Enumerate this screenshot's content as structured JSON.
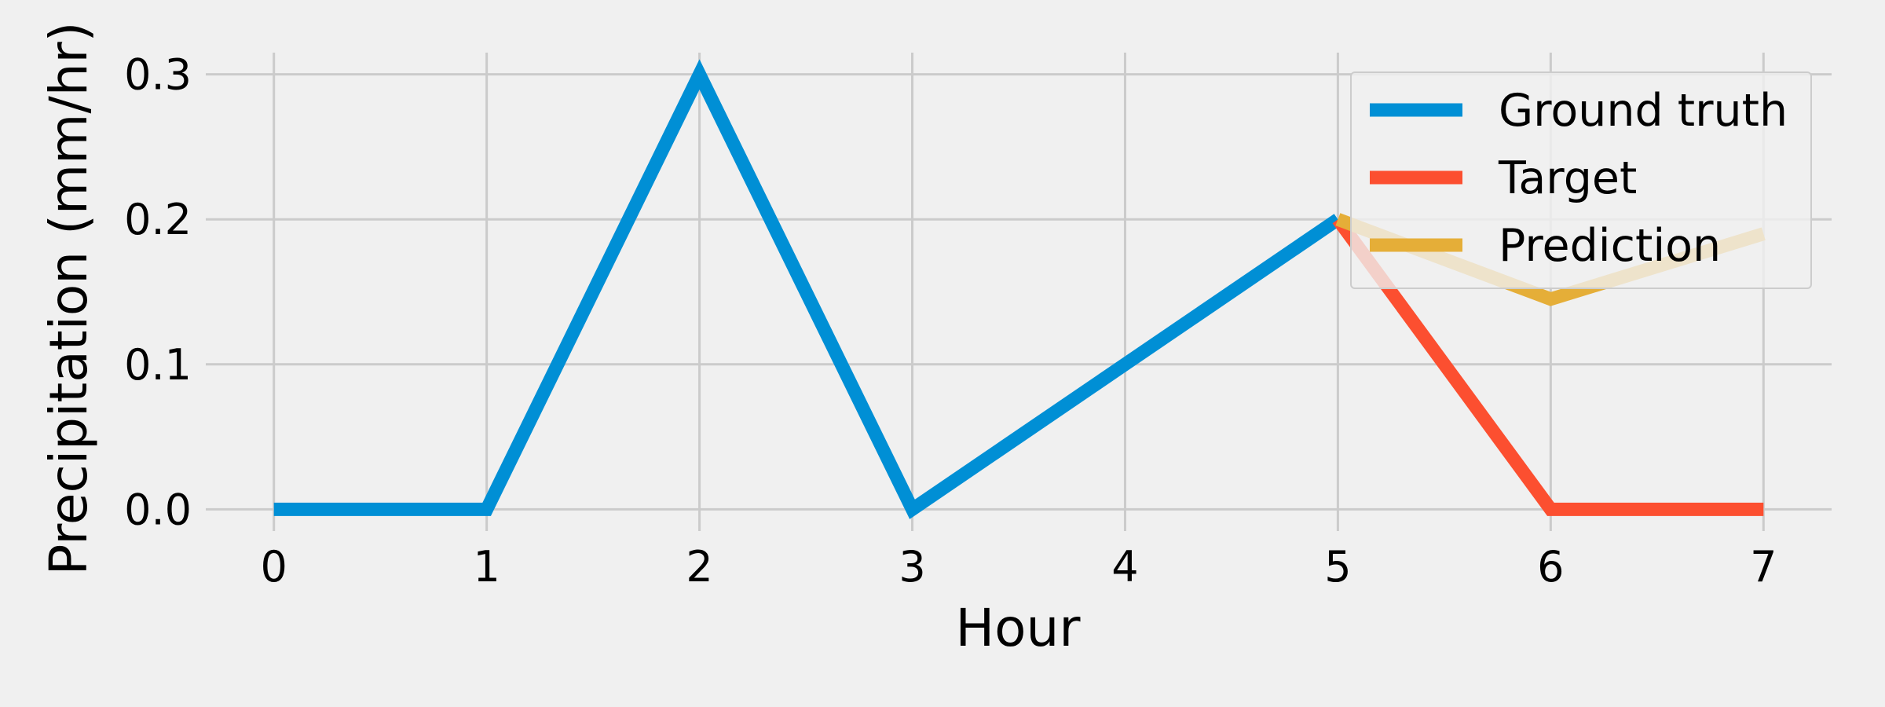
{
  "chart_data": {
    "type": "line",
    "title": "",
    "xlabel": "Hour",
    "ylabel": "Precipitation (mm/hr)",
    "xlim": [
      -0.32,
      7.32
    ],
    "ylim": [
      -0.015,
      0.315
    ],
    "xticks": [
      0,
      1,
      2,
      3,
      4,
      5,
      6,
      7
    ],
    "yticks": [
      0.0,
      0.1,
      0.2,
      0.3
    ],
    "xtick_labels": [
      "0",
      "1",
      "2",
      "3",
      "4",
      "5",
      "6",
      "7"
    ],
    "ytick_labels": [
      "0.0",
      "0.1",
      "0.2",
      "0.3"
    ],
    "grid": true,
    "legend_position": "top-right",
    "series": [
      {
        "name": "Ground truth",
        "color": "#008fd5",
        "x": [
          0,
          1,
          2,
          3,
          4,
          5
        ],
        "y": [
          0.0,
          0.0,
          0.3,
          0.0,
          0.1,
          0.2
        ]
      },
      {
        "name": "Target",
        "color": "#fc4f30",
        "x": [
          5,
          6,
          7
        ],
        "y": [
          0.2,
          0.0,
          0.0
        ]
      },
      {
        "name": "Prediction",
        "color": "#e5ae38",
        "x": [
          5,
          6,
          7
        ],
        "y": [
          0.2,
          0.145,
          0.19
        ]
      }
    ]
  }
}
